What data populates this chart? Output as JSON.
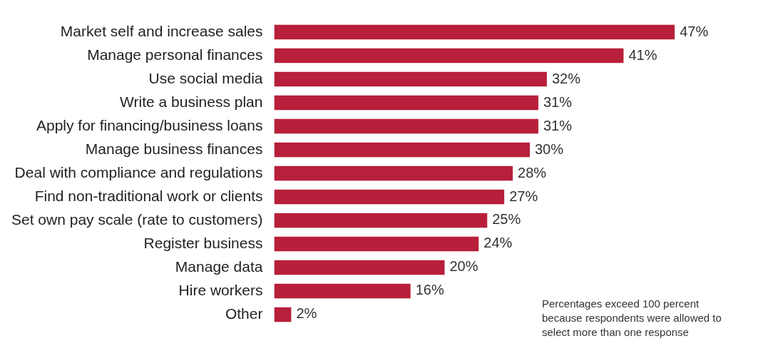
{
  "chart_data": {
    "type": "bar",
    "orientation": "horizontal",
    "categories": [
      "Market self and increase sales",
      "Manage personal finances",
      "Use social media",
      "Write a business plan",
      "Apply for financing/business loans",
      "Manage business finances",
      "Deal with compliance and regulations",
      "Find non-traditional work or clients",
      "Set own pay scale (rate to customers)",
      "Register business",
      "Manage data",
      "Hire workers",
      "Other"
    ],
    "values": [
      47,
      41,
      32,
      31,
      31,
      30,
      28,
      27,
      25,
      24,
      20,
      16,
      2
    ],
    "value_labels": [
      "47%",
      "41%",
      "32%",
      "31%",
      "31%",
      "30%",
      "28%",
      "27%",
      "25%",
      "24%",
      "20%",
      "16%",
      "2%"
    ],
    "color": "#b81f3a",
    "annotations": [
      "Percentages exceed 100 percent because respondents were allowed to select more than one response"
    ]
  }
}
